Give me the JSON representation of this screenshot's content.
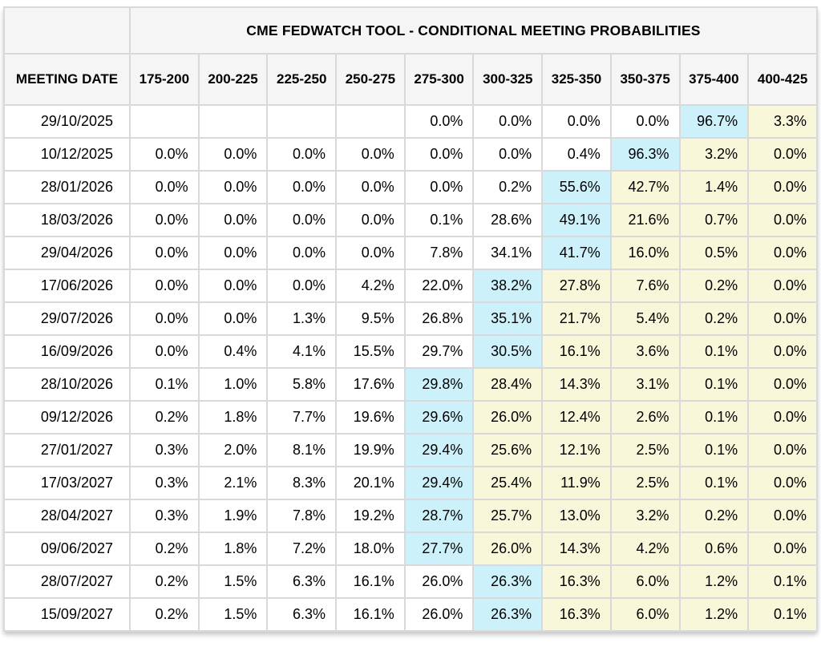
{
  "title": "CME FEDWATCH TOOL - CONDITIONAL MEETING PROBABILITIES",
  "columns": {
    "meeting_date_label": "MEETING DATE",
    "rate_ranges": [
      "175-200",
      "200-225",
      "225-250",
      "250-275",
      "275-300",
      "300-325",
      "325-350",
      "350-375",
      "375-400",
      "400-425"
    ]
  },
  "colors": {
    "highlight_blue": "#cdf1fa",
    "highlight_yellow": "#f8f7d9",
    "header_bg": "#f5f5f5",
    "grid_border": "#d9d9d9"
  },
  "rows": [
    {
      "date": "29/10/2025",
      "values": [
        "",
        "",
        "",
        "",
        "0.0%",
        "0.0%",
        "0.0%",
        "0.0%",
        "96.7%",
        "3.3%"
      ],
      "styles": [
        "w",
        "w",
        "w",
        "w",
        "w",
        "w",
        "w",
        "w",
        "b",
        "y"
      ]
    },
    {
      "date": "10/12/2025",
      "values": [
        "0.0%",
        "0.0%",
        "0.0%",
        "0.0%",
        "0.0%",
        "0.0%",
        "0.4%",
        "96.3%",
        "3.2%",
        "0.0%"
      ],
      "styles": [
        "w",
        "w",
        "w",
        "w",
        "w",
        "w",
        "w",
        "b",
        "y",
        "y"
      ]
    },
    {
      "date": "28/01/2026",
      "values": [
        "0.0%",
        "0.0%",
        "0.0%",
        "0.0%",
        "0.0%",
        "0.2%",
        "55.6%",
        "42.7%",
        "1.4%",
        "0.0%"
      ],
      "styles": [
        "w",
        "w",
        "w",
        "w",
        "w",
        "w",
        "b",
        "y",
        "y",
        "y"
      ]
    },
    {
      "date": "18/03/2026",
      "values": [
        "0.0%",
        "0.0%",
        "0.0%",
        "0.0%",
        "0.1%",
        "28.6%",
        "49.1%",
        "21.6%",
        "0.7%",
        "0.0%"
      ],
      "styles": [
        "w",
        "w",
        "w",
        "w",
        "w",
        "w",
        "b",
        "y",
        "y",
        "y"
      ]
    },
    {
      "date": "29/04/2026",
      "values": [
        "0.0%",
        "0.0%",
        "0.0%",
        "0.0%",
        "7.8%",
        "34.1%",
        "41.7%",
        "16.0%",
        "0.5%",
        "0.0%"
      ],
      "styles": [
        "w",
        "w",
        "w",
        "w",
        "w",
        "w",
        "b",
        "y",
        "y",
        "y"
      ]
    },
    {
      "date": "17/06/2026",
      "values": [
        "0.0%",
        "0.0%",
        "0.0%",
        "4.2%",
        "22.0%",
        "38.2%",
        "27.8%",
        "7.6%",
        "0.2%",
        "0.0%"
      ],
      "styles": [
        "w",
        "w",
        "w",
        "w",
        "w",
        "b",
        "y",
        "y",
        "y",
        "y"
      ]
    },
    {
      "date": "29/07/2026",
      "values": [
        "0.0%",
        "0.0%",
        "1.3%",
        "9.5%",
        "26.8%",
        "35.1%",
        "21.7%",
        "5.4%",
        "0.2%",
        "0.0%"
      ],
      "styles": [
        "w",
        "w",
        "w",
        "w",
        "w",
        "b",
        "y",
        "y",
        "y",
        "y"
      ]
    },
    {
      "date": "16/09/2026",
      "values": [
        "0.0%",
        "0.4%",
        "4.1%",
        "15.5%",
        "29.7%",
        "30.5%",
        "16.1%",
        "3.6%",
        "0.1%",
        "0.0%"
      ],
      "styles": [
        "w",
        "w",
        "w",
        "w",
        "w",
        "b",
        "y",
        "y",
        "y",
        "y"
      ]
    },
    {
      "date": "28/10/2026",
      "values": [
        "0.1%",
        "1.0%",
        "5.8%",
        "17.6%",
        "29.8%",
        "28.4%",
        "14.3%",
        "3.1%",
        "0.1%",
        "0.0%"
      ],
      "styles": [
        "w",
        "w",
        "w",
        "w",
        "b",
        "y",
        "y",
        "y",
        "y",
        "y"
      ]
    },
    {
      "date": "09/12/2026",
      "values": [
        "0.2%",
        "1.8%",
        "7.7%",
        "19.6%",
        "29.6%",
        "26.0%",
        "12.4%",
        "2.6%",
        "0.1%",
        "0.0%"
      ],
      "styles": [
        "w",
        "w",
        "w",
        "w",
        "b",
        "y",
        "y",
        "y",
        "y",
        "y"
      ]
    },
    {
      "date": "27/01/2027",
      "values": [
        "0.3%",
        "2.0%",
        "8.1%",
        "19.9%",
        "29.4%",
        "25.6%",
        "12.1%",
        "2.5%",
        "0.1%",
        "0.0%"
      ],
      "styles": [
        "w",
        "w",
        "w",
        "w",
        "b",
        "y",
        "y",
        "y",
        "y",
        "y"
      ]
    },
    {
      "date": "17/03/2027",
      "values": [
        "0.3%",
        "2.1%",
        "8.3%",
        "20.1%",
        "29.4%",
        "25.4%",
        "11.9%",
        "2.5%",
        "0.1%",
        "0.0%"
      ],
      "styles": [
        "w",
        "w",
        "w",
        "w",
        "b",
        "y",
        "y",
        "y",
        "y",
        "y"
      ]
    },
    {
      "date": "28/04/2027",
      "values": [
        "0.3%",
        "1.9%",
        "7.8%",
        "19.2%",
        "28.7%",
        "25.7%",
        "13.0%",
        "3.2%",
        "0.2%",
        "0.0%"
      ],
      "styles": [
        "w",
        "w",
        "w",
        "w",
        "b",
        "y",
        "y",
        "y",
        "y",
        "y"
      ]
    },
    {
      "date": "09/06/2027",
      "values": [
        "0.2%",
        "1.8%",
        "7.2%",
        "18.0%",
        "27.7%",
        "26.0%",
        "14.3%",
        "4.2%",
        "0.6%",
        "0.0%"
      ],
      "styles": [
        "w",
        "w",
        "w",
        "w",
        "b",
        "y",
        "y",
        "y",
        "y",
        "y"
      ]
    },
    {
      "date": "28/07/2027",
      "values": [
        "0.2%",
        "1.5%",
        "6.3%",
        "16.1%",
        "26.0%",
        "26.3%",
        "16.3%",
        "6.0%",
        "1.2%",
        "0.1%"
      ],
      "styles": [
        "w",
        "w",
        "w",
        "w",
        "w",
        "b",
        "y",
        "y",
        "y",
        "y"
      ]
    },
    {
      "date": "15/09/2027",
      "values": [
        "0.2%",
        "1.5%",
        "6.3%",
        "16.1%",
        "26.0%",
        "26.3%",
        "16.3%",
        "6.0%",
        "1.2%",
        "0.1%"
      ],
      "styles": [
        "w",
        "w",
        "w",
        "w",
        "w",
        "b",
        "y",
        "y",
        "y",
        "y"
      ]
    }
  ]
}
